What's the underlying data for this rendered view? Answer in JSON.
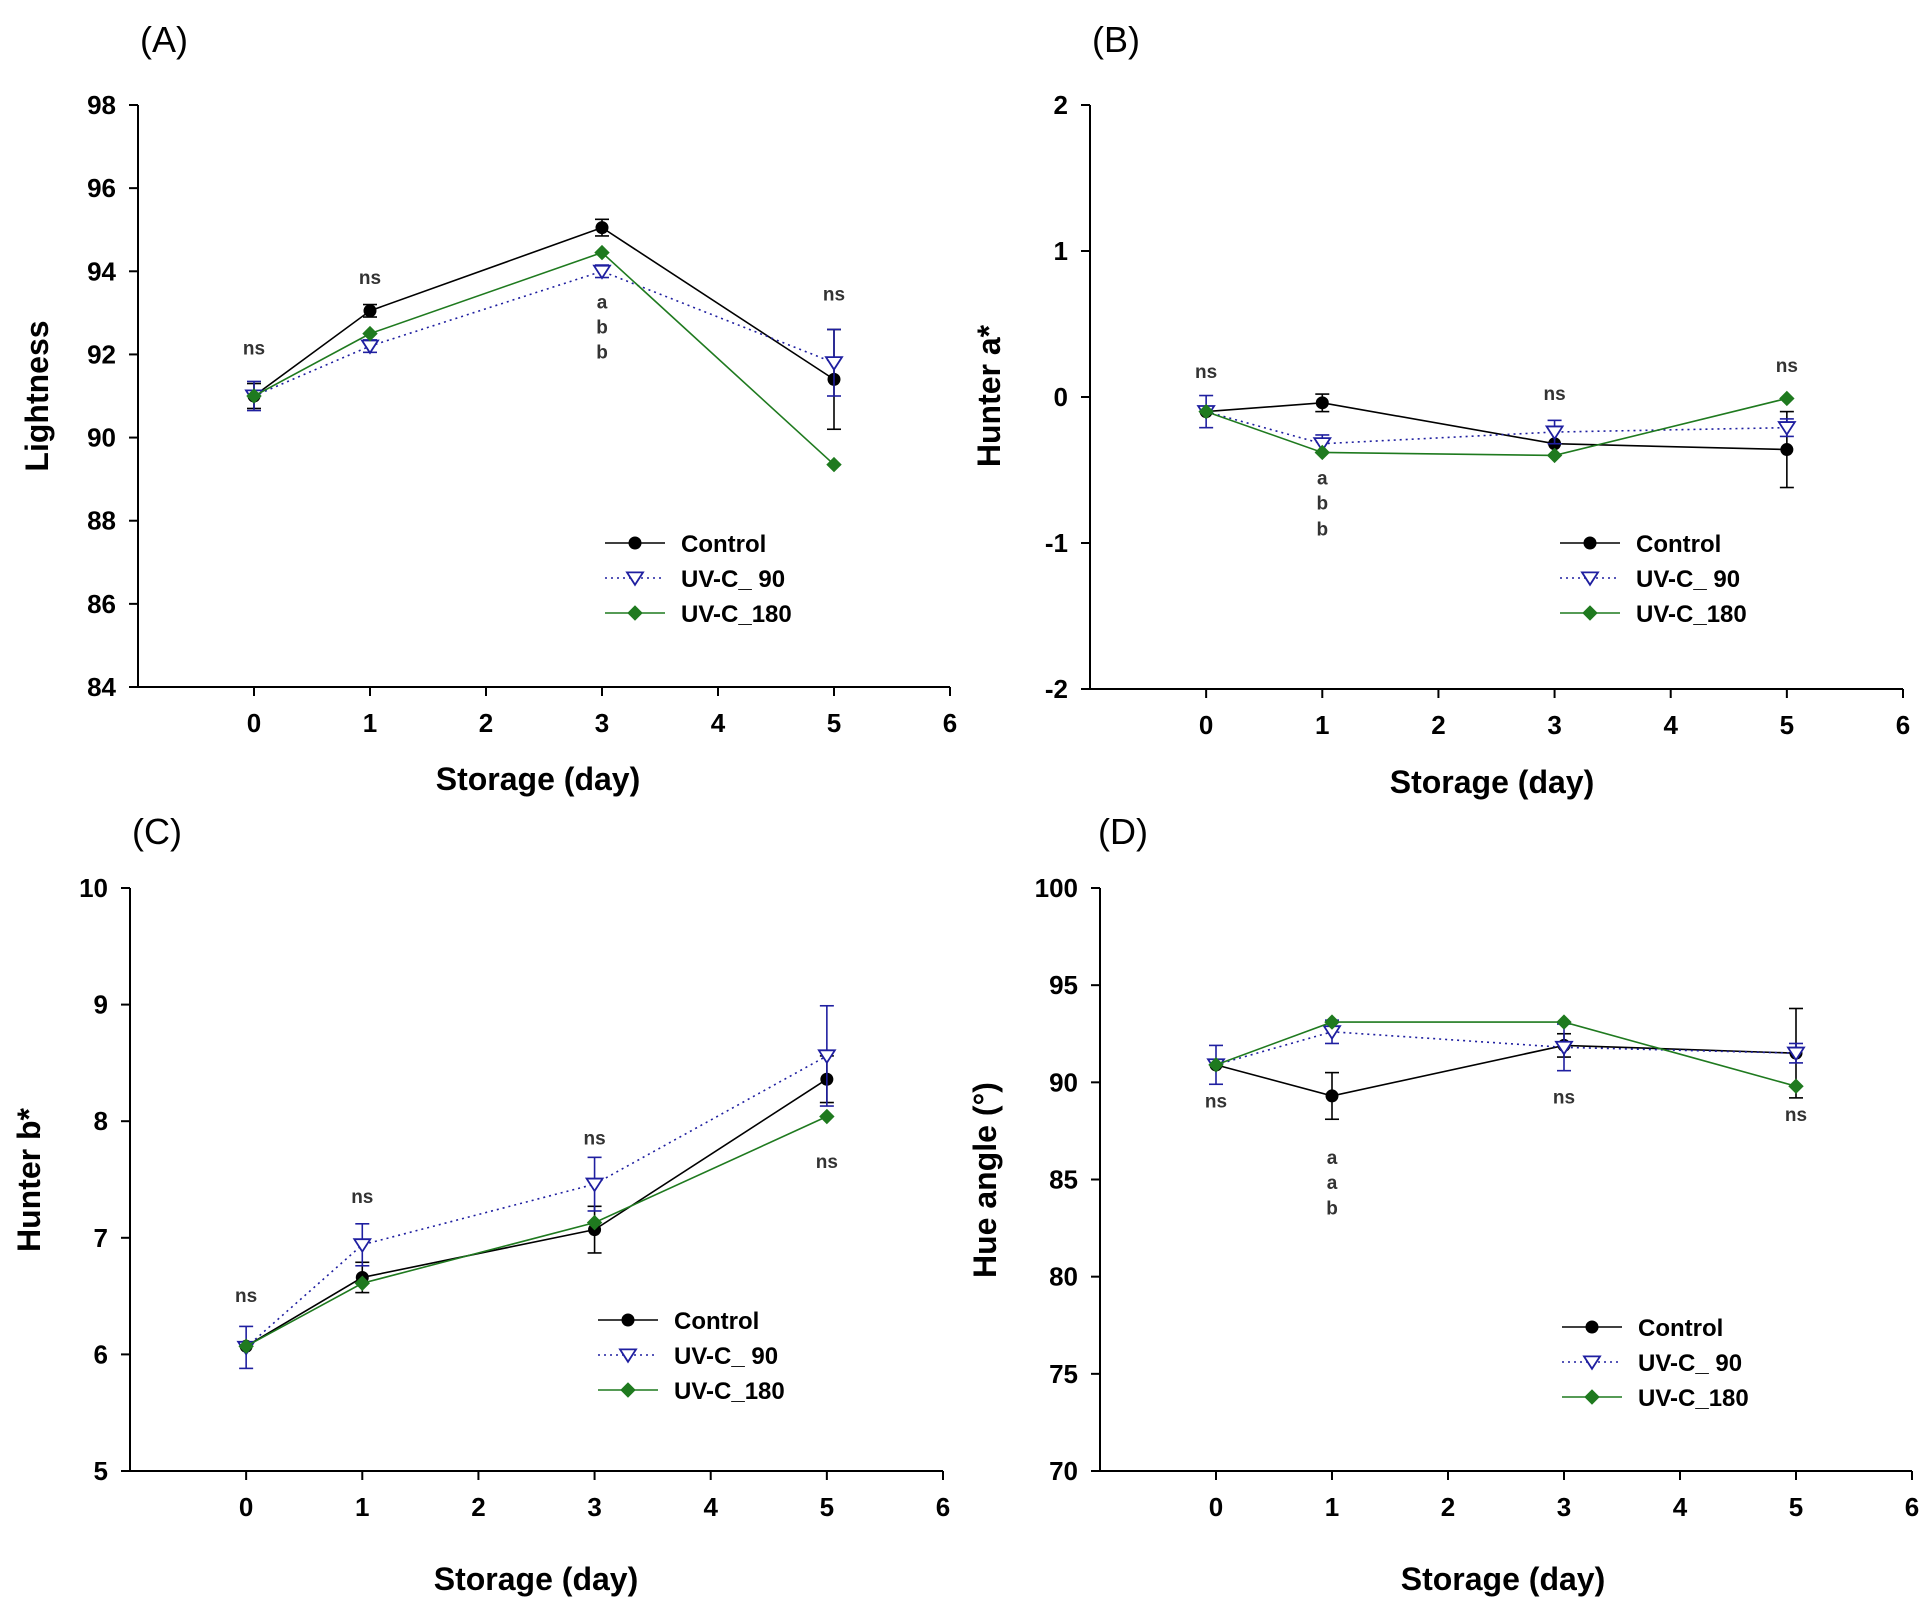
{
  "colors": {
    "control": "#000000",
    "uvc90": "#1f1fa0",
    "uvc180": "#1f7a1f"
  },
  "legend": [
    "Control",
    "UV-C_ 90",
    "UV-C_180"
  ],
  "chart_data": [
    {
      "panel": "(A)",
      "type": "line",
      "xlabel": "Storage (day)",
      "ylabel": "Lightness",
      "xlim": [
        -1,
        6
      ],
      "ylim": [
        84,
        98
      ],
      "xticks": [
        0,
        1,
        2,
        3,
        4,
        5,
        6
      ],
      "yticks": [
        84,
        86,
        88,
        90,
        92,
        94,
        96,
        98
      ],
      "x": [
        0,
        1,
        3,
        5
      ],
      "series": [
        {
          "name": "Control",
          "values": [
            91.0,
            93.05,
            95.05,
            91.4
          ],
          "err": [
            0.3,
            0.15,
            0.2,
            1.2
          ]
        },
        {
          "name": "UV-C_ 90",
          "values": [
            91.0,
            92.2,
            94.0,
            91.8
          ],
          "err": [
            0.35,
            0.15,
            0.15,
            0.8
          ]
        },
        {
          "name": "UV-C_180",
          "values": [
            91.0,
            92.5,
            94.45,
            89.35
          ],
          "err": [
            0,
            0,
            0,
            0
          ]
        }
      ],
      "annotations": [
        {
          "x": 0,
          "y": 92.0,
          "text": "ns"
        },
        {
          "x": 1,
          "y": 93.7,
          "text": "ns"
        },
        {
          "x": 3,
          "y": 93.1,
          "text": "a"
        },
        {
          "x": 3,
          "y": 92.5,
          "text": "b"
        },
        {
          "x": 3,
          "y": 91.9,
          "text": "b"
        },
        {
          "x": 5,
          "y": 93.3,
          "text": "ns"
        }
      ],
      "legend_position": "bottom-right"
    },
    {
      "panel": "(B)",
      "type": "line",
      "xlabel": "Storage (day)",
      "ylabel": "Hunter a*",
      "xlim": [
        -1,
        6
      ],
      "ylim": [
        -2,
        2
      ],
      "xticks": [
        0,
        1,
        2,
        3,
        4,
        5,
        6
      ],
      "yticks": [
        -2,
        -1,
        0,
        1,
        2
      ],
      "x": [
        0,
        1,
        3,
        5
      ],
      "series": [
        {
          "name": "Control",
          "values": [
            -0.1,
            -0.04,
            -0.32,
            -0.36
          ],
          "err": [
            0,
            0.06,
            0,
            0.26
          ]
        },
        {
          "name": "UV-C_ 90",
          "values": [
            -0.1,
            -0.32,
            -0.24,
            -0.21
          ],
          "err": [
            0.11,
            0.06,
            0.08,
            0.06
          ]
        },
        {
          "name": "UV-C_180",
          "values": [
            -0.1,
            -0.38,
            -0.4,
            -0.01
          ],
          "err": [
            0,
            0,
            0,
            0
          ]
        }
      ],
      "annotations": [
        {
          "x": 0,
          "y": 0.13,
          "text": "ns"
        },
        {
          "x": 1,
          "y": -0.6,
          "text": "a"
        },
        {
          "x": 1,
          "y": -0.77,
          "text": "b"
        },
        {
          "x": 1,
          "y": -0.95,
          "text": "b"
        },
        {
          "x": 3,
          "y": -0.02,
          "text": "ns"
        },
        {
          "x": 5,
          "y": 0.17,
          "text": "ns"
        }
      ],
      "legend_position": "bottom-right"
    },
    {
      "panel": "(C)",
      "type": "line",
      "xlabel": "Storage (day)",
      "ylabel": "Hunter b*",
      "xlim": [
        -1,
        6
      ],
      "ylim": [
        5,
        10
      ],
      "xticks": [
        0,
        1,
        2,
        3,
        4,
        5,
        6
      ],
      "yticks": [
        5,
        6,
        7,
        8,
        9,
        10
      ],
      "x": [
        0,
        1,
        3,
        5
      ],
      "series": [
        {
          "name": "Control",
          "values": [
            6.07,
            6.66,
            7.07,
            8.36
          ],
          "err": [
            0,
            0.13,
            0.2,
            0.2
          ]
        },
        {
          "name": "UV-C_ 90",
          "values": [
            6.06,
            6.94,
            7.46,
            8.56
          ],
          "err": [
            0.18,
            0.18,
            0.23,
            0.43
          ]
        },
        {
          "name": "UV-C_180",
          "values": [
            6.07,
            6.61,
            7.13,
            8.04
          ],
          "err": [
            0,
            0,
            0,
            0
          ]
        }
      ],
      "annotations": [
        {
          "x": 0,
          "y": 6.45,
          "text": "ns"
        },
        {
          "x": 1,
          "y": 7.3,
          "text": "ns"
        },
        {
          "x": 3,
          "y": 7.8,
          "text": "ns"
        },
        {
          "x": 5,
          "y": 7.6,
          "text": "ns"
        }
      ],
      "legend_position": "bottom-right"
    },
    {
      "panel": "(D)",
      "type": "line",
      "xlabel": "Storage (day)",
      "ylabel": "Hue angle (°)",
      "xlim": [
        -1,
        6
      ],
      "ylim": [
        70,
        100
      ],
      "xticks": [
        0,
        1,
        2,
        3,
        4,
        5,
        6
      ],
      "yticks": [
        70,
        75,
        80,
        85,
        90,
        95,
        100
      ],
      "x": [
        0,
        1,
        3,
        5
      ],
      "series": [
        {
          "name": "Control",
          "values": [
            90.9,
            89.3,
            91.9,
            91.5
          ],
          "err": [
            0,
            1.2,
            0.6,
            2.3
          ]
        },
        {
          "name": "UV-C_ 90",
          "values": [
            90.9,
            92.6,
            91.8,
            91.5
          ],
          "err": [
            1.0,
            0.6,
            1.2,
            0.5
          ]
        },
        {
          "name": "UV-C_180",
          "values": [
            90.9,
            93.1,
            93.1,
            89.8
          ],
          "err": [
            0,
            0,
            0,
            0
          ]
        }
      ],
      "annotations": [
        {
          "x": 0,
          "y": 88.7,
          "text": "ns"
        },
        {
          "x": 1,
          "y": 85.8,
          "text": "a"
        },
        {
          "x": 1,
          "y": 84.5,
          "text": "a"
        },
        {
          "x": 1,
          "y": 83.2,
          "text": "b"
        },
        {
          "x": 3,
          "y": 88.9,
          "text": "ns"
        },
        {
          "x": 5,
          "y": 88.0,
          "text": "ns"
        }
      ],
      "legend_position": "bottom-right"
    }
  ]
}
